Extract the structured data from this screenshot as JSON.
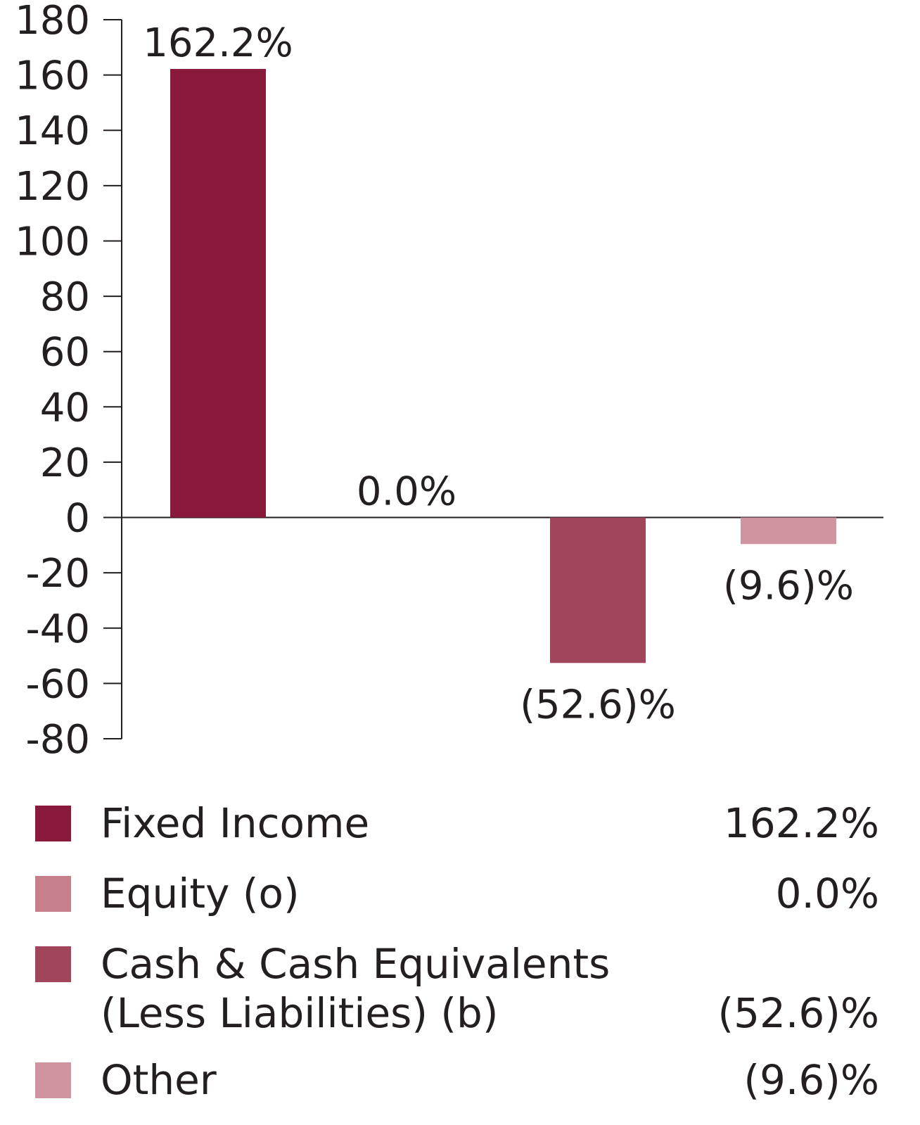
{
  "chart_data": {
    "type": "bar",
    "categories": [
      "Fixed Income",
      "Equity (o)",
      "Cash & Cash Equivalents\n(Less Liabilities) (b)",
      "Other"
    ],
    "values": [
      162.2,
      0.0,
      -52.6,
      -9.6
    ],
    "data_labels": [
      "162.2%",
      "0.0%",
      "(52.6)%",
      "(9.6)%"
    ],
    "colors": [
      "#8a1a3b",
      "#c77f8c",
      "#a0455a",
      "#cf94a0"
    ],
    "ylim": [
      -80,
      180
    ],
    "yticks": [
      180,
      160,
      140,
      120,
      100,
      80,
      60,
      40,
      20,
      0,
      -20,
      -40,
      -60,
      -80
    ],
    "grid": false,
    "legend_position": "bottom"
  },
  "legend": {
    "items": [
      {
        "label": "Fixed Income",
        "value": "162.2%",
        "color": "#8a1a3b"
      },
      {
        "label": "Equity (o)",
        "value": "0.0%",
        "color": "#c77f8c"
      },
      {
        "label": "Cash & Cash Equivalents\n(Less Liabilities) (b)",
        "value": "(52.6)%",
        "color": "#a0455a"
      },
      {
        "label": "Other",
        "value": "(9.6)%",
        "color": "#cf94a0"
      }
    ]
  }
}
